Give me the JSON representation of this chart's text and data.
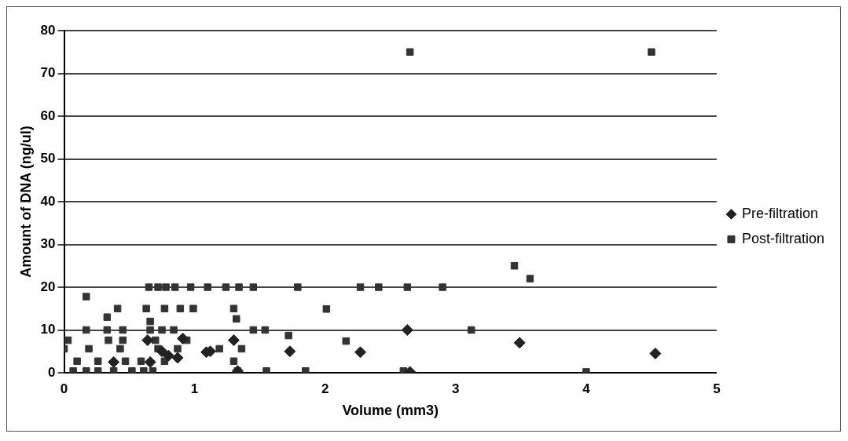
{
  "chart_data": {
    "type": "scatter",
    "xlabel": "Volume (mm3)",
    "ylabel": "Amount of DNA (ng/ul)",
    "xlim": [
      0,
      5
    ],
    "xticks": [
      0,
      1,
      2,
      3,
      4,
      5
    ],
    "ylim": [
      0,
      80
    ],
    "yticks": [
      0,
      10,
      20,
      30,
      40,
      50,
      60,
      70,
      80
    ],
    "grid": "y",
    "legend": "right",
    "series": [
      {
        "name": "Pre-filtration",
        "color": "#222222",
        "marker": "diamond",
        "x": [
          0.64,
          1.3,
          1.09,
          1.12,
          0.87,
          0.66,
          0.38,
          1.33,
          0.91,
          0.75,
          0.8,
          1.73,
          2.27,
          2.63,
          2.65,
          3.49,
          4.53
        ],
        "values": [
          7.6,
          7.6,
          4.8,
          5,
          3.5,
          2.5,
          2.5,
          0.4,
          8,
          5,
          4,
          5,
          4.8,
          10,
          0.2,
          7,
          4.5
        ]
      },
      {
        "name": "Post-filtration",
        "color": "#333333",
        "marker": "square",
        "x": [
          2.65,
          4.5,
          0.65,
          0.72,
          0.78,
          0.85,
          0.97,
          1.1,
          1.24,
          1.34,
          1.45,
          1.79,
          2.27,
          2.41,
          2.63,
          2.9,
          3.45,
          3.57,
          0.17,
          0.41,
          0.63,
          0.77,
          0.89,
          0.99,
          1.3,
          1.32,
          0.17,
          0.33,
          0.45,
          0.66,
          0.75,
          0.84,
          1.45,
          1.54,
          0.33,
          0.66,
          0.03,
          0.34,
          0.45,
          0.7,
          0.94,
          0,
          0.19,
          0.43,
          0.72,
          0.87,
          1.19,
          1.36,
          0.1,
          0.26,
          0.47,
          0.59,
          0.77,
          1.3,
          0.07,
          0.17,
          0.26,
          0.38,
          0.52,
          0.61,
          0.68,
          1.33,
          1.55,
          1.85,
          2.01,
          3.12,
          1.72,
          2.16,
          2.6,
          4.0
        ],
        "values": [
          75,
          75,
          20,
          20,
          20,
          20,
          20,
          20,
          20,
          20,
          20,
          20,
          20,
          20,
          20,
          20,
          25,
          22,
          17.8,
          15,
          15,
          15,
          15,
          15,
          15,
          12.6,
          10,
          10,
          10,
          10,
          10,
          10,
          10,
          10,
          13,
          12,
          7.6,
          7.6,
          7.6,
          7.6,
          7.6,
          5.6,
          5.6,
          5.6,
          5.6,
          5.6,
          5.6,
          5.6,
          2.7,
          2.7,
          2.7,
          2.7,
          2.7,
          2.7,
          0.4,
          0.4,
          0.4,
          0.4,
          0.4,
          0.4,
          0.4,
          0.4,
          0.4,
          0.4,
          14.9,
          10,
          8.7,
          7.4,
          0.4,
          0.2
        ]
      }
    ]
  }
}
